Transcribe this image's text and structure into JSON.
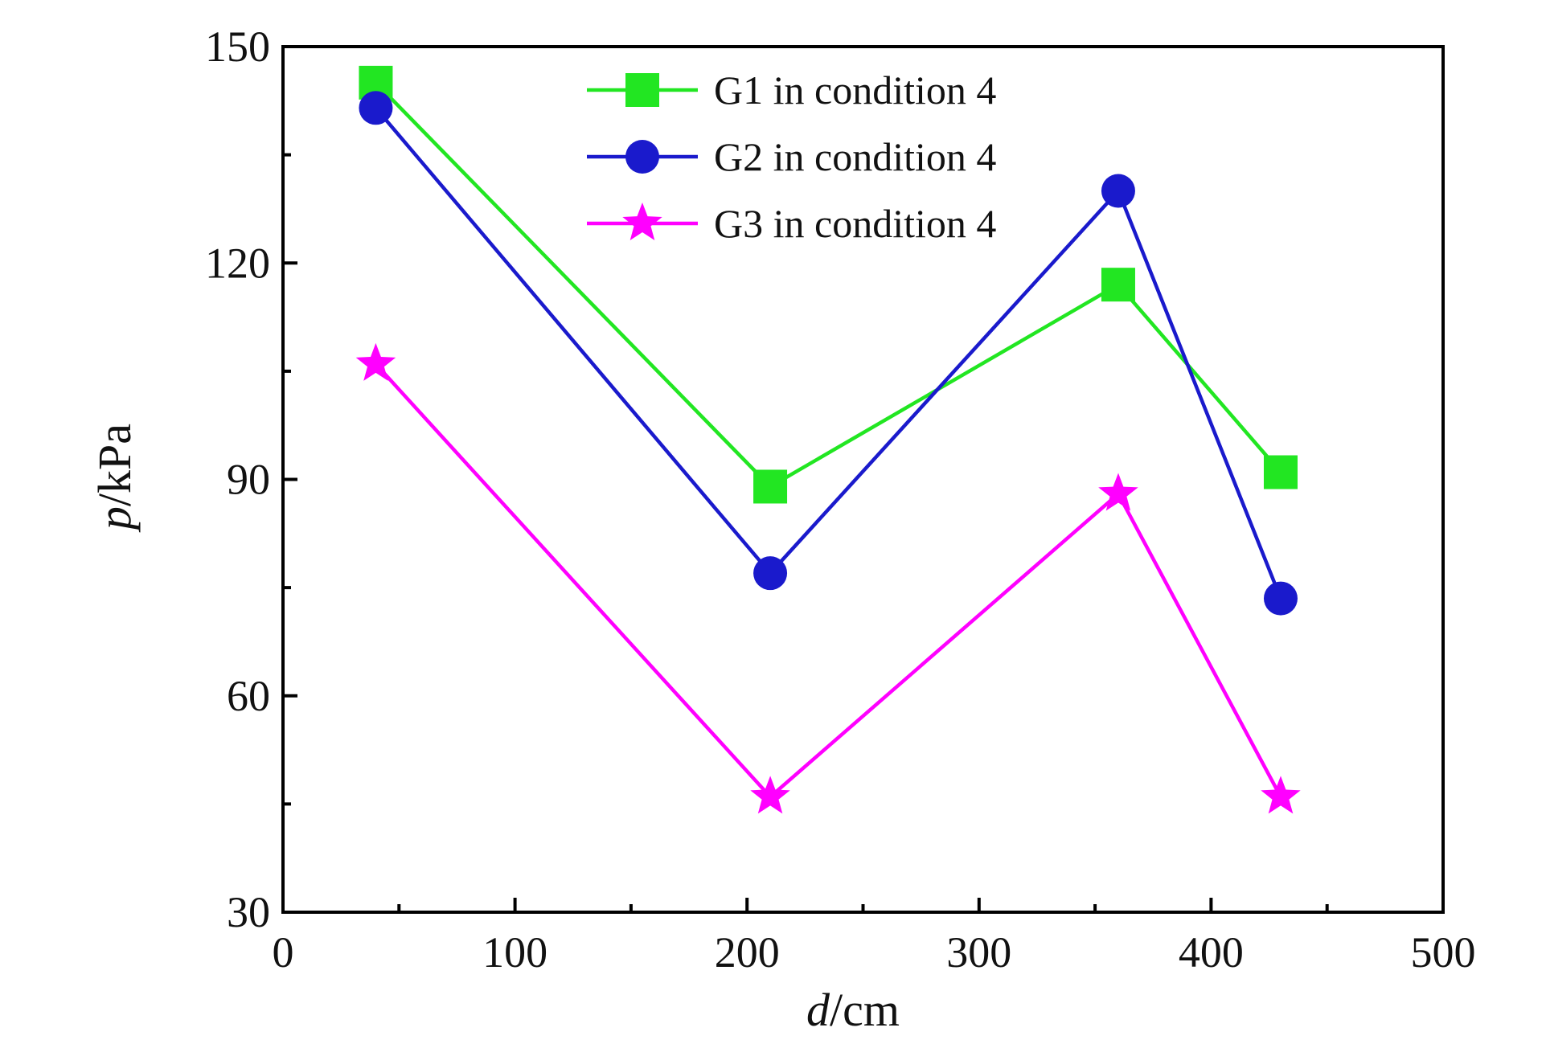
{
  "chart_data": {
    "type": "line",
    "title": "",
    "xlabel": {
      "var": "d",
      "unit": "/cm"
    },
    "ylabel": {
      "var": "p",
      "unit": "/kPa"
    },
    "xlim": [
      0,
      500
    ],
    "ylim": [
      30,
      150
    ],
    "xticks": [
      "0",
      "100",
      "200",
      "300",
      "400",
      "500"
    ],
    "yticks": [
      "30",
      "60",
      "90",
      "120",
      "150"
    ],
    "grid": false,
    "legend_position": "top-center",
    "series": [
      {
        "name": "G1 in condition 4",
        "color": "#22e622",
        "marker": "square",
        "x": [
          40,
          210,
          360,
          430
        ],
        "y": [
          145,
          89,
          117,
          91
        ]
      },
      {
        "name": "G2 in condition 4",
        "color": "#1a1acc",
        "marker": "circle",
        "x": [
          40,
          210,
          360,
          430
        ],
        "y": [
          141.5,
          77,
          130,
          73.5
        ]
      },
      {
        "name": "G3 in condition 4",
        "color": "#ff00ff",
        "marker": "star",
        "x": [
          40,
          210,
          360,
          430
        ],
        "y": [
          106,
          46,
          88,
          46
        ]
      }
    ]
  }
}
